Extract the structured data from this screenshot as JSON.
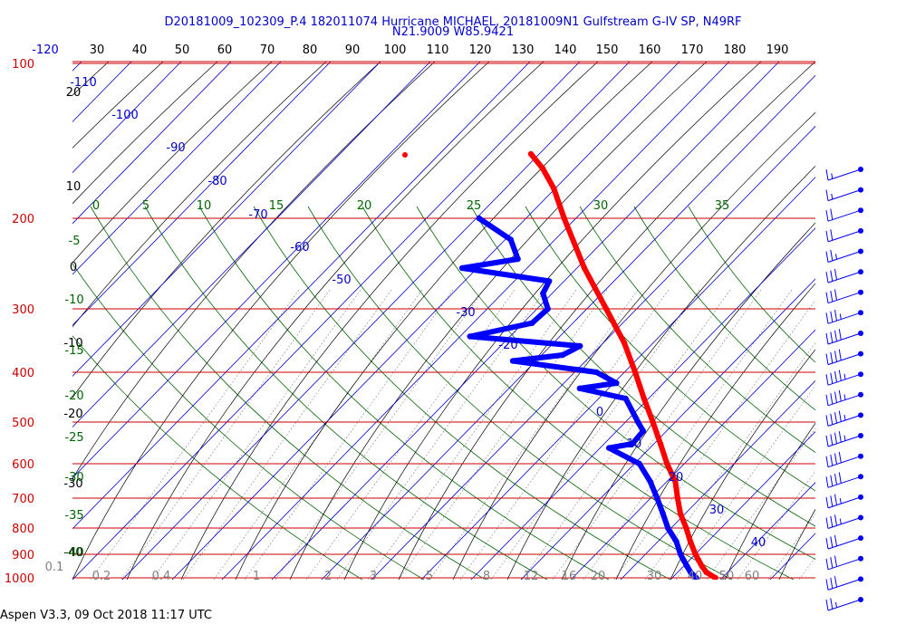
{
  "header": {
    "line1": "D20181009_102309_P.4 182011074 Hurricane MICHAEL, 20181009N1 Gulfstream G-IV SP, N49RF",
    "line2": "N21.9009 W85.9421"
  },
  "footer": "Aspen V3.3, 09 Oct 2018  11:17 UTC",
  "colors": {
    "temperature": "#ff0000",
    "dewpoint": "#0000ff",
    "isobar": "#cc0000",
    "isotherm": "#0000cc",
    "dry_adiabat": "#000000",
    "moist_adiabat": "#006600",
    "mixing_ratio": "#808080",
    "wind_barb": "#0000ff"
  },
  "chart_data": {
    "type": "skew-t",
    "title": "D20181009_102309_P.4 182011074 Hurricane MICHAEL, 20181009N1 Gulfstream G-IV SP, N49RF",
    "subtitle": "N21.9009 W85.9421",
    "y_axis_pressure_ticks": [
      "100",
      "200",
      "300",
      "400",
      "500",
      "600",
      "700",
      "800",
      "900",
      "1000"
    ],
    "top_temperature_ticks": [
      "-120",
      "30",
      "40",
      "50",
      "60",
      "70",
      "80",
      "90",
      "100",
      "110",
      "120",
      "130",
      "140",
      "150",
      "160",
      "170",
      "180",
      "190"
    ],
    "isotherm_labels": [
      "-110",
      "-100",
      "-90",
      "-80",
      "-70",
      "-60",
      "-50",
      "-30",
      "-20",
      "0",
      "10",
      "20",
      "30",
      "40"
    ],
    "dry_adiabat_labels": [
      "20",
      "10",
      "0",
      "-10",
      "-20",
      "-30",
      "-40"
    ],
    "moist_adiabat_labels": [
      "0",
      "5",
      "10",
      "15",
      "20",
      "25",
      "30",
      "35",
      "-5",
      "-10",
      "-15",
      "-20",
      "-25",
      "-30",
      "-35",
      "-40"
    ],
    "mixing_ratio_labels": [
      "0.1",
      "0.2",
      "0.4",
      "1",
      "2",
      "3",
      "5",
      "8",
      "12",
      "16",
      "20",
      "30",
      "40",
      "50",
      "60"
    ],
    "temperature_profile": [
      {
        "p": 1000,
        "t": 26.5
      },
      {
        "p": 975,
        "t": 23.7
      },
      {
        "p": 950,
        "t": 22.0
      },
      {
        "p": 925,
        "t": 20.5
      },
      {
        "p": 900,
        "t": 19.0
      },
      {
        "p": 850,
        "t": 16.3
      },
      {
        "p": 800,
        "t": 13.7
      },
      {
        "p": 750,
        "t": 10.6
      },
      {
        "p": 700,
        "t": 8.1
      },
      {
        "p": 650,
        "t": 5.6
      },
      {
        "p": 600,
        "t": 1.5
      },
      {
        "p": 550,
        "t": -2.4
      },
      {
        "p": 500,
        "t": -6.8
      },
      {
        "p": 450,
        "t": -11.7
      },
      {
        "p": 400,
        "t": -16.9
      },
      {
        "p": 350,
        "t": -23.0
      },
      {
        "p": 300,
        "t": -31.3
      },
      {
        "p": 250,
        "t": -41.3
      },
      {
        "p": 200,
        "t": -52.0
      },
      {
        "p": 175,
        "t": -58.0
      },
      {
        "p": 160,
        "t": -63.0
      },
      {
        "p": 150,
        "t": -67.5
      }
    ],
    "dewpoint_profile": [
      {
        "p": 1000,
        "td": 22.0
      },
      {
        "p": 975,
        "td": 20.0
      },
      {
        "p": 950,
        "td": 18.5
      },
      {
        "p": 925,
        "td": 17.0
      },
      {
        "p": 900,
        "td": 15.5
      },
      {
        "p": 850,
        "td": 13.0
      },
      {
        "p": 800,
        "td": 9.4
      },
      {
        "p": 750,
        "td": 6.5
      },
      {
        "p": 700,
        "td": 3.3
      },
      {
        "p": 650,
        "td": -0.3
      },
      {
        "p": 600,
        "td": -5.0
      },
      {
        "p": 560,
        "td": -14.0
      },
      {
        "p": 550,
        "td": -9.0
      },
      {
        "p": 520,
        "td": -8.0
      },
      {
        "p": 500,
        "td": -10.3
      },
      {
        "p": 450,
        "td": -16.0
      },
      {
        "p": 430,
        "td": -28.0
      },
      {
        "p": 420,
        "td": -20.0
      },
      {
        "p": 400,
        "td": -26.0
      },
      {
        "p": 380,
        "td": -47.0
      },
      {
        "p": 370,
        "td": -36.0
      },
      {
        "p": 355,
        "td": -33.0
      },
      {
        "p": 340,
        "td": -60.0
      },
      {
        "p": 320,
        "td": -47.0
      },
      {
        "p": 300,
        "td": -45.0
      },
      {
        "p": 280,
        "td": -48.0
      },
      {
        "p": 265,
        "td": -48.0
      },
      {
        "p": 250,
        "td": -70.0
      },
      {
        "p": 240,
        "td": -58.0
      },
      {
        "p": 220,
        "td": -62.0
      },
      {
        "p": 200,
        "td": -72.0
      }
    ],
    "wind_barbs_kt": [
      15,
      15,
      20,
      20,
      25,
      30,
      30,
      35,
      40,
      40,
      45,
      45,
      45,
      45,
      40,
      40,
      35,
      35,
      30,
      30,
      30,
      25
    ]
  }
}
